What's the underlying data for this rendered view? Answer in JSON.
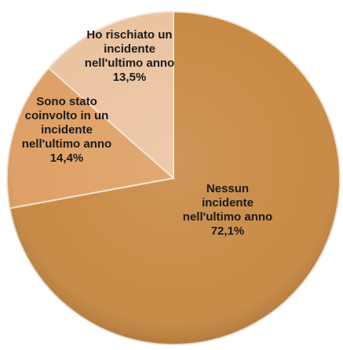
{
  "chart_data": {
    "type": "pie",
    "slices": [
      {
        "label_lines": [
          "Nessun",
          "incidente",
          "nell'ultimo anno"
        ],
        "value": 72.1,
        "value_label": "72,1%",
        "color": "#c98a45"
      },
      {
        "label_lines": [
          "Sono stato",
          "coinvolto in un",
          "incidente",
          "nell'ultimo anno"
        ],
        "value": 14.4,
        "value_label": "14,4%",
        "color": "#dfa066"
      },
      {
        "label_lines": [
          "Ho rischiato  un",
          "incidente",
          "nell'ultimo anno"
        ],
        "value": 13.5,
        "value_label": "13,5%",
        "color": "#ebc3a1"
      }
    ]
  }
}
